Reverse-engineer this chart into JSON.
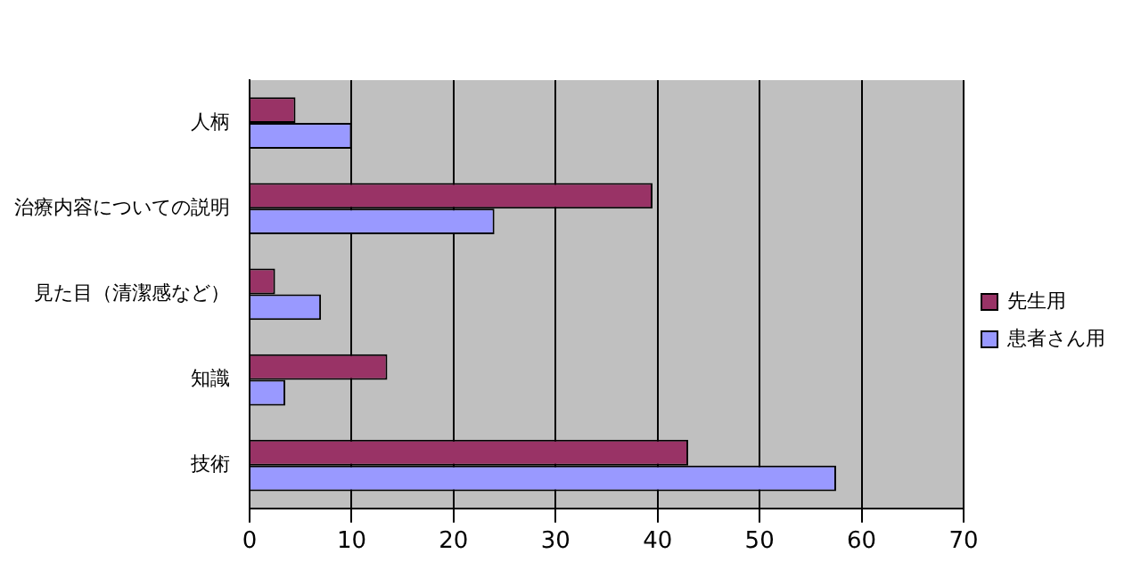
{
  "chart_data": {
    "type": "bar",
    "orientation": "horizontal",
    "categories": [
      "人柄",
      "治療内容についての説明",
      "見た目（清潔感など）",
      "知識",
      "技術"
    ],
    "series": [
      {
        "name": "先生用",
        "color": "#993366",
        "values": [
          4.5,
          39.5,
          2.5,
          13.5,
          43
        ]
      },
      {
        "name": "患者さん用",
        "color": "#9999ff",
        "values": [
          10,
          24,
          7,
          3.5,
          57.5
        ]
      }
    ],
    "xlim": [
      0,
      70
    ],
    "xticks": [
      0,
      10,
      20,
      30,
      40,
      50,
      60,
      70
    ],
    "grid": "x",
    "legend": "right"
  }
}
